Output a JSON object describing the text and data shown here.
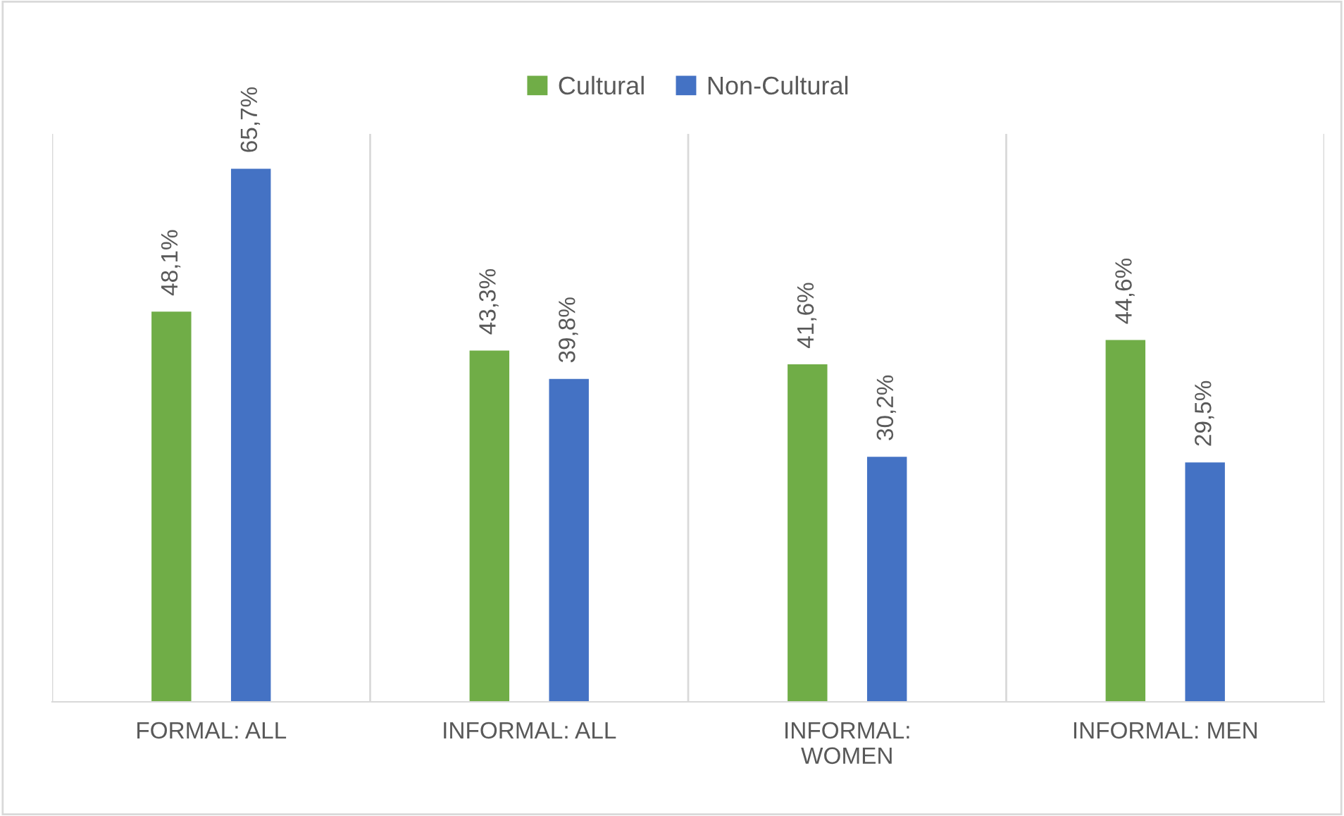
{
  "chart_data": {
    "type": "bar",
    "categories": [
      "FORMAL: ALL",
      "INFORMAL: ALL",
      "INFORMAL:\nWOMEN",
      "INFORMAL: MEN"
    ],
    "series": [
      {
        "name": "Cultural",
        "color": "#70ad47",
        "values": [
          48.1,
          43.3,
          41.6,
          44.6
        ],
        "value_labels": [
          "48,1%",
          "43,3%",
          "41,6%",
          "44,6%"
        ]
      },
      {
        "name": "Non-Cultural",
        "color": "#4472c4",
        "values": [
          65.7,
          39.8,
          30.2,
          29.5
        ],
        "value_labels": [
          "65,7%",
          "39,8%",
          "30,2%",
          "29,5%"
        ]
      }
    ],
    "ylim": [
      0,
      70
    ],
    "tick_labels": "x",
    "grid": "x",
    "legend": "top"
  }
}
